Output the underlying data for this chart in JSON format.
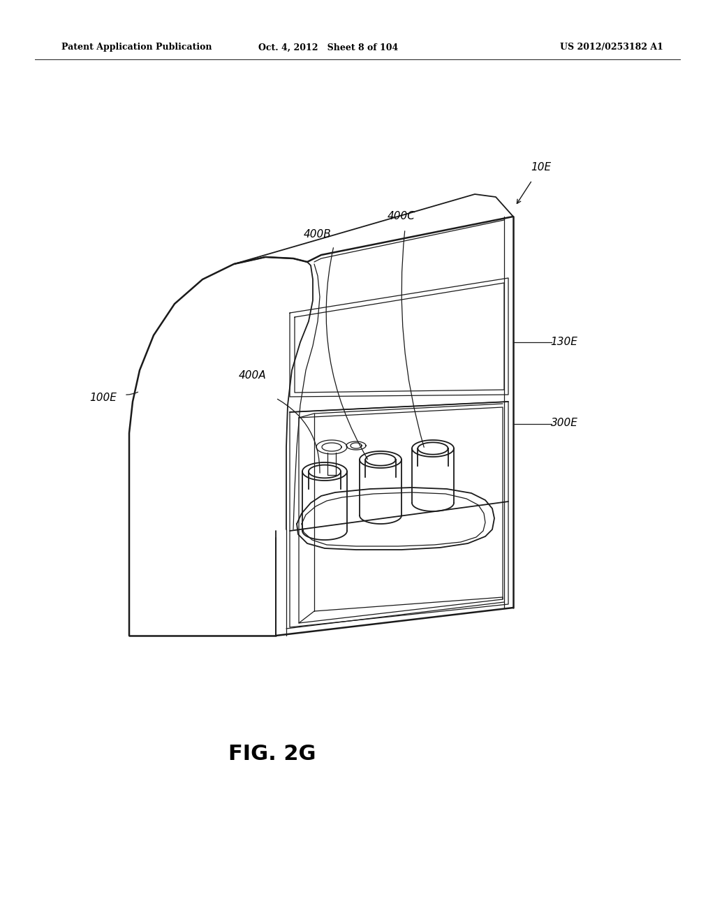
{
  "header_left": "Patent Application Publication",
  "header_center": "Oct. 4, 2012   Sheet 8 of 104",
  "header_right": "US 2012/0253182 A1",
  "figure_label": "FIG. 2G",
  "bg_color": "#ffffff",
  "line_color": "#1a1a1a",
  "lw_heavy": 1.8,
  "lw_med": 1.3,
  "lw_thin": 0.9
}
